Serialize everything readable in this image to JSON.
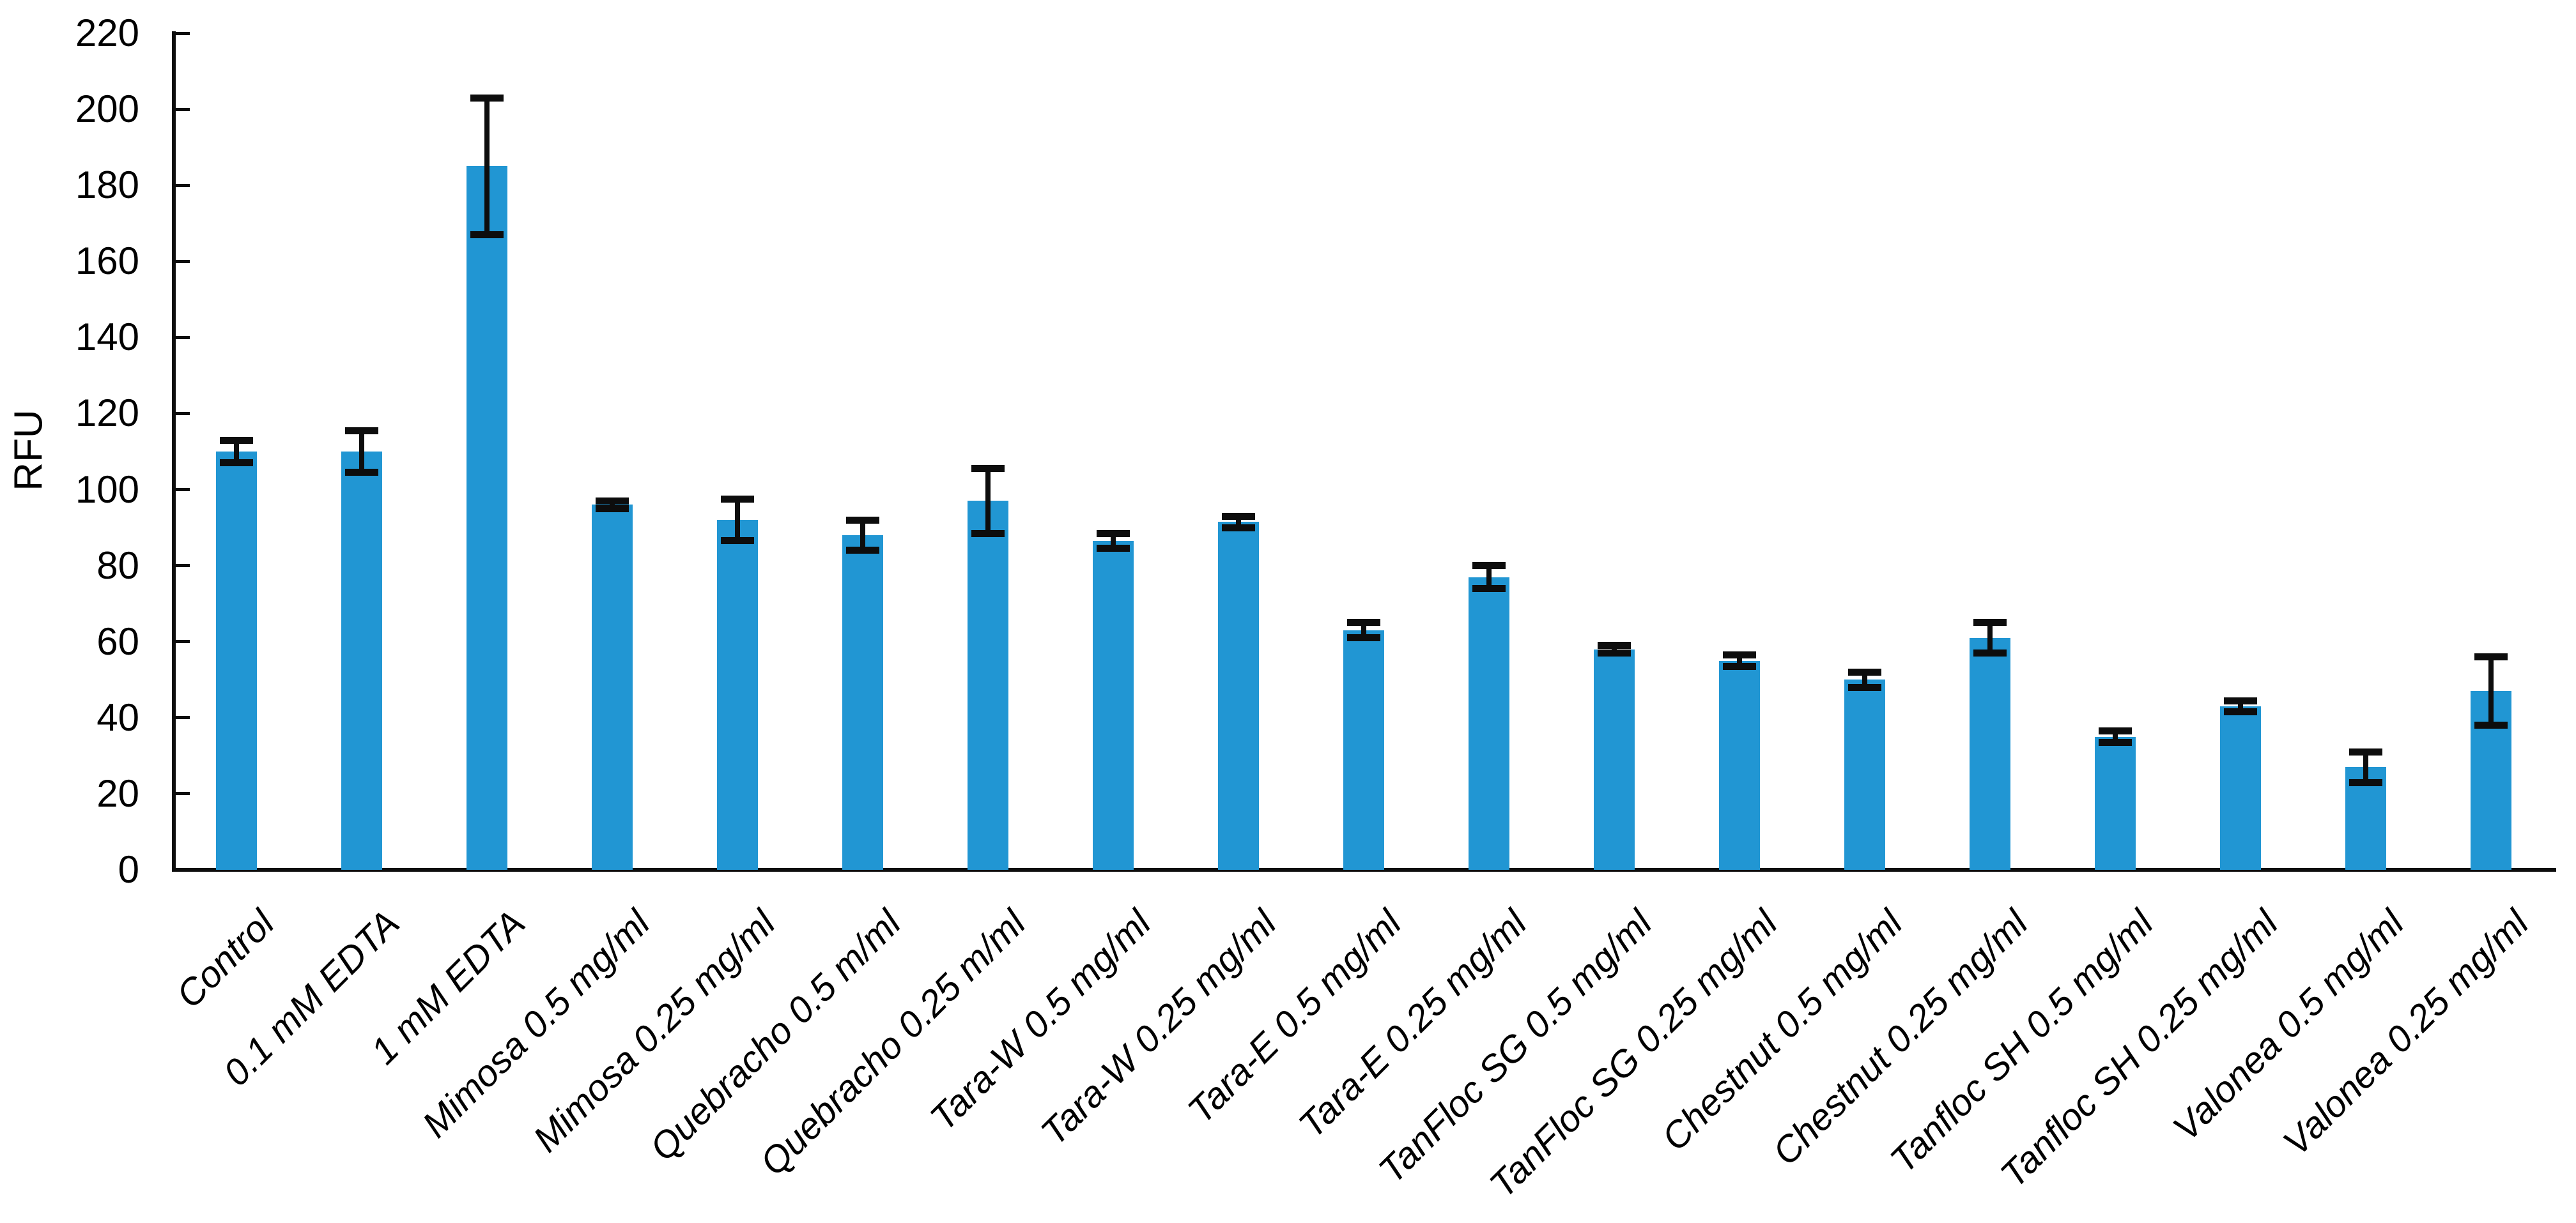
{
  "chart_data": {
    "type": "bar",
    "title": "",
    "ylabel": "RFU",
    "xlabel": "",
    "ylim": [
      0,
      220
    ],
    "ytick_step": 20,
    "grid": false,
    "legend_position": "none",
    "bar_color": "#2196d3",
    "error_bar_color": "#0d0d0d",
    "categories": [
      "Control",
      "0.1 mM EDTA",
      "1 mM EDTA",
      "Mimosa 0.5 mg/ml",
      "Mimosa 0.25 mg/ml",
      "Quebracho 0.5 m/ml",
      "Quebracho 0.25 m/ml",
      "Tara-W 0.5 mg/ml",
      "Tara-W 0.25 mg/ml",
      "Tara-E 0.5 mg/ml",
      "Tara-E 0.25 mg/ml",
      "TanFloc SG 0.5 mg/ml",
      "TanFloc SG 0.25 mg/ml",
      "Chestnut 0.5 mg/ml",
      "Chestnut 0.25 mg/ml",
      "Tanfloc SH 0.5 mg/ml",
      "Tanfloc SH 0.25 mg/ml",
      "Valonea 0.5 mg/ml",
      "Valonea 0.25 mg/ml"
    ],
    "values": [
      110,
      110,
      185,
      96,
      92,
      88,
      97,
      86.5,
      91.5,
      63,
      77,
      58,
      55,
      50,
      61,
      35,
      43,
      27,
      47
    ],
    "errors": [
      3,
      5.5,
      18,
      1,
      5.5,
      4,
      8.5,
      2,
      1.5,
      2,
      3,
      1,
      1.5,
      2,
      4,
      1.5,
      1.5,
      4,
      9
    ]
  }
}
